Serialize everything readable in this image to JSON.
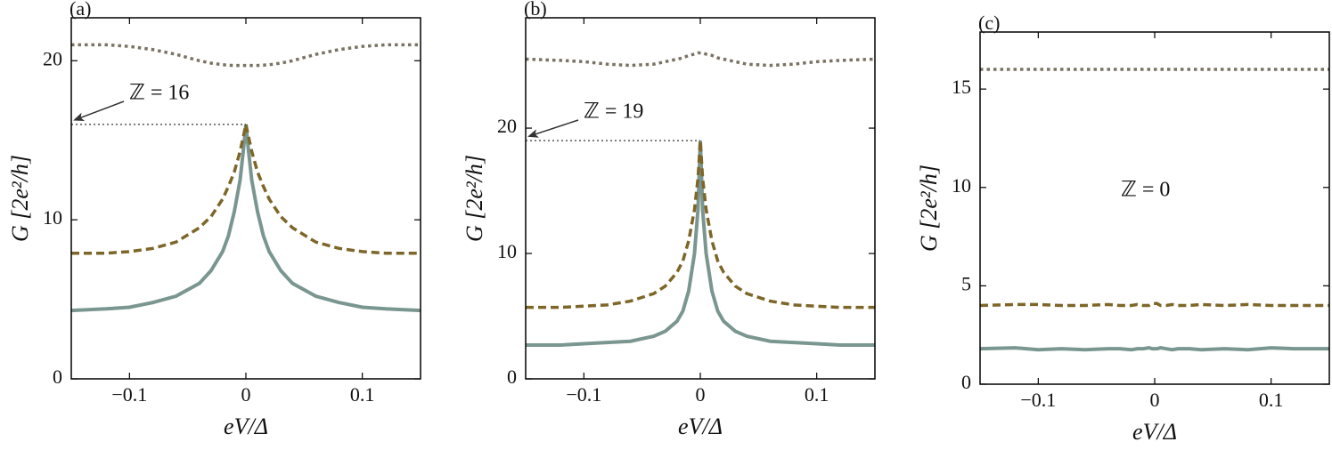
{
  "chart_data": [
    {
      "type": "line",
      "title": "(a)",
      "x_label": "eV/Δ",
      "y_label": "G [2e²/h]",
      "annotation": {
        "text": "ℤ = 16",
        "arrow": true
      },
      "x": [
        -0.15,
        -0.12,
        -0.1,
        -0.08,
        -0.06,
        -0.04,
        -0.03,
        -0.02,
        -0.015,
        -0.01,
        -0.005,
        -0.002,
        0,
        0.002,
        0.005,
        0.01,
        0.015,
        0.02,
        0.03,
        0.04,
        0.06,
        0.08,
        0.1,
        0.12,
        0.15
      ],
      "series": [
        {
          "color": "#7a9690",
          "style": "solid",
          "values": [
            4.3,
            4.4,
            4.5,
            4.8,
            5.2,
            6.0,
            6.8,
            8.0,
            9.0,
            10.5,
            12.5,
            14.5,
            16,
            14.5,
            12.5,
            10.5,
            9.0,
            8.0,
            6.8,
            6.0,
            5.2,
            4.8,
            4.5,
            4.4,
            4.3
          ]
        },
        {
          "color": "#7d6628",
          "style": "dashed",
          "values": [
            7.9,
            7.9,
            8.0,
            8.2,
            8.6,
            9.5,
            10.2,
            11.3,
            12.1,
            13.0,
            14.3,
            15.3,
            16,
            15.3,
            14.3,
            13.0,
            12.1,
            11.3,
            10.2,
            9.5,
            8.6,
            8.2,
            8.0,
            7.9,
            7.9
          ]
        },
        {
          "color": "#7a7262",
          "style": "dotted",
          "values": [
            21.0,
            21.0,
            20.9,
            20.7,
            20.4,
            20.0,
            19.85,
            19.75,
            19.72,
            19.7,
            19.7,
            19.7,
            19.7,
            19.7,
            19.7,
            19.7,
            19.72,
            19.75,
            19.85,
            20.0,
            20.4,
            20.7,
            20.9,
            21.0,
            21.0
          ]
        }
      ],
      "xlim": [
        -0.15,
        0.15
      ],
      "ylim": [
        0,
        22.7
      ],
      "xticks": [
        {
          "value": -0.1,
          "label": "−0.1"
        },
        0,
        0.1
      ],
      "yticks": [
        0,
        10,
        20
      ]
    },
    {
      "type": "line",
      "title": "(b)",
      "x_label": "eV/Δ",
      "y_label": "G [2e²/h]",
      "annotation": {
        "text": "ℤ = 19",
        "arrow": true
      },
      "x": [
        -0.15,
        -0.12,
        -0.1,
        -0.08,
        -0.06,
        -0.04,
        -0.03,
        -0.02,
        -0.015,
        -0.01,
        -0.005,
        -0.002,
        0,
        0.002,
        0.005,
        0.01,
        0.015,
        0.02,
        0.03,
        0.04,
        0.06,
        0.08,
        0.1,
        0.12,
        0.15
      ],
      "series": [
        {
          "color": "#7a9690",
          "style": "solid",
          "values": [
            2.7,
            2.7,
            2.8,
            2.9,
            3.0,
            3.4,
            3.8,
            4.6,
            5.4,
            7.0,
            10.0,
            13.5,
            19,
            13.5,
            10.0,
            7.0,
            5.4,
            4.6,
            3.8,
            3.4,
            3.0,
            2.9,
            2.8,
            2.7,
            2.7
          ]
        },
        {
          "color": "#7d6628",
          "style": "dashed",
          "values": [
            5.7,
            5.7,
            5.8,
            5.9,
            6.2,
            6.8,
            7.4,
            8.5,
            9.4,
            11.0,
            13.5,
            16.0,
            19,
            16.0,
            13.5,
            11.0,
            9.4,
            8.5,
            7.4,
            6.8,
            6.2,
            5.9,
            5.8,
            5.7,
            5.7
          ]
        },
        {
          "color": "#7a7262",
          "style": "dotted",
          "values": [
            25.5,
            25.4,
            25.3,
            25.1,
            25.0,
            25.1,
            25.3,
            25.5,
            25.6,
            25.8,
            25.9,
            26.0,
            26.0,
            26.0,
            25.9,
            25.8,
            25.6,
            25.5,
            25.3,
            25.1,
            25.0,
            25.1,
            25.3,
            25.4,
            25.5
          ]
        }
      ],
      "xlim": [
        -0.15,
        0.15
      ],
      "ylim": [
        0,
        28.8
      ],
      "xticks": [
        {
          "value": -0.1,
          "label": "−0.1"
        },
        0,
        0.1
      ],
      "yticks": [
        0,
        10,
        20
      ]
    },
    {
      "type": "line",
      "title": "(c)",
      "x_label": "eV/Δ",
      "y_label": "G [2e²/h]",
      "annotation": {
        "text": "ℤ = 0",
        "arrow": false
      },
      "x": [
        -0.15,
        -0.12,
        -0.1,
        -0.08,
        -0.06,
        -0.04,
        -0.03,
        -0.02,
        -0.015,
        -0.01,
        -0.005,
        -0.002,
        0,
        0.002,
        0.005,
        0.01,
        0.015,
        0.02,
        0.03,
        0.04,
        0.06,
        0.08,
        0.1,
        0.12,
        0.15
      ],
      "series": [
        {
          "color": "#7a9690",
          "style": "solid",
          "values": [
            1.8,
            1.85,
            1.75,
            1.8,
            1.75,
            1.8,
            1.8,
            1.75,
            1.8,
            1.8,
            1.85,
            1.8,
            1.8,
            1.8,
            1.85,
            1.8,
            1.75,
            1.8,
            1.8,
            1.75,
            1.8,
            1.75,
            1.85,
            1.8,
            1.8
          ]
        },
        {
          "color": "#7d6628",
          "style": "dashed",
          "values": [
            4.0,
            4.05,
            4.05,
            4.0,
            4.0,
            4.05,
            4.0,
            4.0,
            4.05,
            4.0,
            4.0,
            4.1,
            4.1,
            4.1,
            4.0,
            4.0,
            4.05,
            4.0,
            4.0,
            4.05,
            4.0,
            4.05,
            4.0,
            4.0,
            4.0
          ]
        },
        {
          "color": "#7a7262",
          "style": "dotted",
          "values": [
            16,
            16,
            16,
            16,
            16,
            16,
            16,
            16,
            16,
            16,
            16,
            16,
            16,
            16,
            16,
            16,
            16,
            16,
            16,
            16,
            16,
            16,
            16,
            16,
            16
          ]
        }
      ],
      "xlim": [
        -0.15,
        0.15
      ],
      "ylim": [
        0,
        17.9
      ],
      "xticks": [
        {
          "value": -0.1,
          "label": "−0.1"
        },
        0,
        0.1
      ],
      "yticks": [
        0,
        5,
        10,
        15
      ]
    }
  ]
}
